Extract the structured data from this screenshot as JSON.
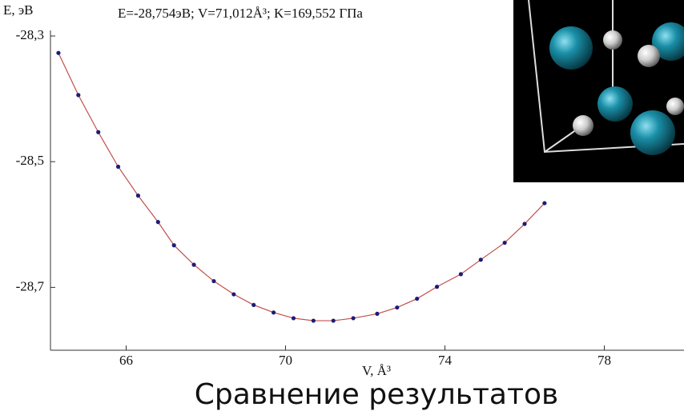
{
  "chart_data": {
    "type": "line",
    "title": "E=-28,754эВ; V=71,012Å³; K=169,552 ГПа",
    "y_label": "E, эВ",
    "x_label": "V, Å³",
    "caption": "Сравнение результатов",
    "x": [
      64.3,
      64.8,
      65.3,
      65.8,
      66.3,
      66.8,
      67.2,
      67.7,
      68.2,
      68.7,
      69.2,
      69.7,
      70.2,
      70.7,
      71.2,
      71.7,
      72.3,
      72.8,
      73.3,
      73.8,
      74.4,
      74.9,
      75.5,
      76.0,
      76.5
    ],
    "values": [
      -28.327,
      -28.394,
      -28.453,
      -28.508,
      -28.554,
      -28.596,
      -28.633,
      -28.664,
      -28.69,
      -28.711,
      -28.728,
      -28.74,
      -28.749,
      -28.753,
      -28.753,
      -28.749,
      -28.742,
      -28.732,
      -28.718,
      -28.699,
      -28.679,
      -28.656,
      -28.629,
      -28.599,
      -28.566
    ],
    "color": "#1c1c78",
    "line_color": "#c0504d",
    "xlim": [
      64.1,
      80
    ],
    "ylim": [
      -28.8,
      -28.3
    ],
    "xticks": [
      66,
      70,
      74,
      78
    ],
    "yticks": [
      {
        "value": -28.3,
        "label": "-28,3"
      },
      {
        "value": -28.5,
        "label": "-28,5"
      },
      {
        "value": -28.7,
        "label": "-28,7"
      }
    ]
  }
}
